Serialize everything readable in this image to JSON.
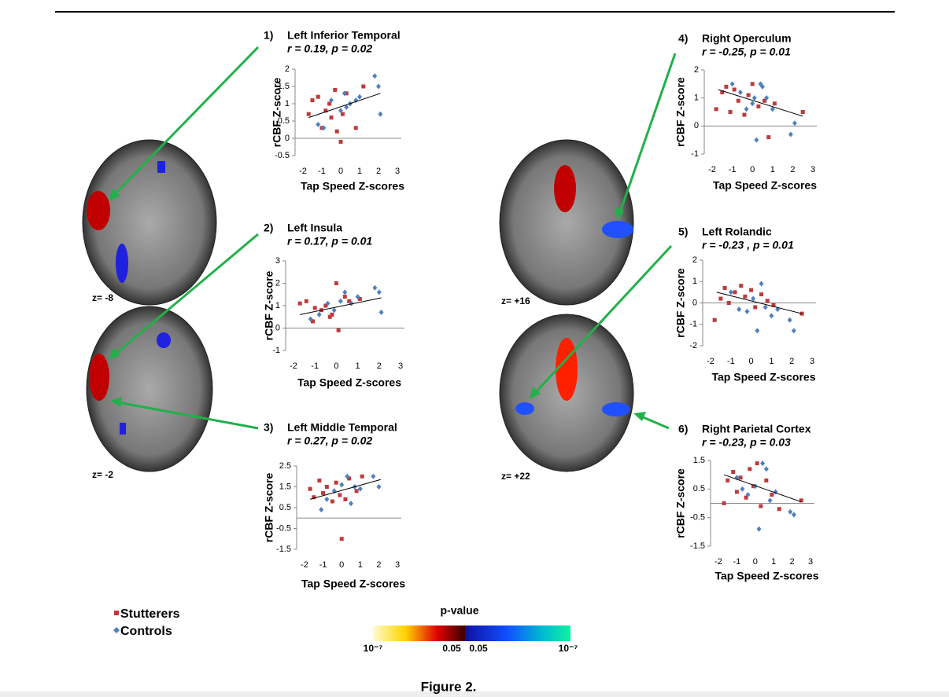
{
  "chart_data": [
    {
      "type": "scatter",
      "panel": "1)",
      "title": "Left Inferior Temporal",
      "subtitle": "r = 0.19, p = 0.02",
      "x_label": "Tap Speed Z-scores",
      "y_label": "rCBF Z-score",
      "xlim": [
        -2,
        3
      ],
      "xticks": [
        -2,
        -1,
        0,
        1,
        2,
        3
      ],
      "ylim": [
        -0.5,
        2
      ],
      "yticks": [
        -0.5,
        0,
        0.5,
        1,
        1.5,
        2
      ],
      "series": [
        {
          "name": "Stutterers",
          "color": "#c0393b",
          "marker": "square",
          "x": [
            -1.7,
            -1.5,
            -1.2,
            -1,
            -0.8,
            -0.6,
            -0.5,
            -0.3,
            -0.2,
            0,
            0.1,
            0.3,
            0.8,
            1.2
          ],
          "values": [
            0.7,
            1.1,
            1.2,
            0.3,
            0.8,
            1.0,
            0.6,
            1.4,
            0.2,
            -0.1,
            0.7,
            1.3,
            0.3,
            1.5
          ]
        },
        {
          "name": "Controls",
          "color": "#4f81bd",
          "marker": "diamond",
          "x": [
            -1.2,
            -0.9,
            -0.5,
            0,
            0.2,
            0.3,
            0.5,
            0.8,
            1,
            1.8,
            2,
            2.1
          ],
          "values": [
            0.4,
            0.3,
            1.1,
            0.8,
            1.3,
            0.9,
            1.0,
            1.1,
            1.2,
            1.8,
            1.5,
            0.7
          ]
        }
      ],
      "trend": {
        "x": [
          -1.7,
          2.1
        ],
        "y": [
          0.6,
          1.3
        ]
      }
    },
    {
      "type": "scatter",
      "panel": "2)",
      "title": "Left Insula",
      "subtitle": "r = 0.17, p = 0.01",
      "x_label": "Tap Speed Z-scores",
      "y_label": "rCBF Z-score",
      "xlim": [
        -2,
        3
      ],
      "xticks": [
        -2,
        -1,
        0,
        1,
        2,
        3
      ],
      "ylim": [
        -1,
        3
      ],
      "yticks": [
        -1,
        0,
        1,
        2,
        3
      ],
      "series": [
        {
          "name": "Stutterers",
          "color": "#c0393b",
          "marker": "square",
          "x": [
            -1.7,
            -1.4,
            -1.1,
            -1,
            -0.7,
            -0.5,
            -0.3,
            -0.2,
            0,
            0.1,
            0.4,
            0.6,
            1.1
          ],
          "values": [
            1.1,
            1.2,
            0.3,
            0.9,
            0.8,
            1.0,
            0.5,
            0.6,
            2.0,
            -0.1,
            1.4,
            1.2,
            1.3
          ]
        },
        {
          "name": "Controls",
          "color": "#4f81bd",
          "marker": "diamond",
          "x": [
            -1.2,
            -0.8,
            -0.4,
            -0.1,
            0.2,
            0.4,
            0.7,
            1,
            1.8,
            2,
            2.1
          ],
          "values": [
            0.4,
            0.6,
            1.1,
            0.8,
            1.2,
            1.6,
            1.1,
            1.4,
            1.8,
            1.6,
            0.7
          ]
        }
      ],
      "trend": {
        "x": [
          -1.7,
          2.1
        ],
        "y": [
          0.6,
          1.35
        ]
      }
    },
    {
      "type": "scatter",
      "panel": "3)",
      "title": "Left Middle Temporal",
      "subtitle": "r = 0.27, p = 0.02",
      "x_label": "Tap Speed Z-scores",
      "y_label": "rCBF Z-score",
      "xlim": [
        -2,
        3
      ],
      "xticks": [
        -2,
        -1,
        0,
        1,
        2,
        3
      ],
      "ylim": [
        -1.5,
        2.5
      ],
      "yticks": [
        -1.5,
        -0.5,
        0.5,
        1.5,
        2.5
      ],
      "series": [
        {
          "name": "Stutterers",
          "color": "#c0393b",
          "marker": "square",
          "x": [
            -1.7,
            -1.5,
            -1.2,
            -1,
            -0.8,
            -0.5,
            -0.3,
            -0.1,
            0,
            0.2,
            0.4,
            0.8,
            1.1
          ],
          "values": [
            1.4,
            1.0,
            1.8,
            1.2,
            1.5,
            0.8,
            1.7,
            1.1,
            -1.0,
            0.9,
            1.9,
            1.3,
            2.0
          ]
        },
        {
          "name": "Controls",
          "color": "#4f81bd",
          "marker": "diamond",
          "x": [
            -1.1,
            -0.8,
            -0.4,
            0,
            0.3,
            0.5,
            0.7,
            1,
            1.7,
            2
          ],
          "values": [
            0.4,
            0.9,
            1.3,
            1.6,
            2.0,
            0.7,
            1.5,
            1.4,
            2.0,
            1.5
          ]
        }
      ],
      "trend": {
        "x": [
          -1.7,
          2.1
        ],
        "y": [
          0.9,
          1.85
        ]
      }
    },
    {
      "type": "scatter",
      "panel": "4)",
      "title": "Right Operculum",
      "subtitle": "r = -0.25, p = 0.01",
      "x_label": "Tap Speed Z-scores",
      "y_label": "rCBF Z-score",
      "xlim": [
        -2,
        3
      ],
      "xticks": [
        -2,
        -1,
        0,
        1,
        2,
        3
      ],
      "ylim": [
        -1,
        2
      ],
      "yticks": [
        -1,
        0,
        1,
        2
      ],
      "series": [
        {
          "name": "Stutterers",
          "color": "#c0393b",
          "marker": "square",
          "x": [
            -1.8,
            -1.5,
            -1.3,
            -1.1,
            -0.9,
            -0.7,
            -0.4,
            -0.2,
            0,
            0.3,
            0.6,
            0.8,
            1.1,
            2.5
          ],
          "values": [
            0.6,
            1.2,
            1.4,
            0.5,
            1.3,
            0.9,
            0.4,
            1.1,
            1.5,
            0.7,
            0.9,
            -0.4,
            0.8,
            0.5
          ]
        },
        {
          "name": "Controls",
          "color": "#4f81bd",
          "marker": "diamond",
          "x": [
            -1,
            -0.6,
            -0.3,
            0,
            0.2,
            0.4,
            0.5,
            0.7,
            1,
            1.9,
            2.1,
            0.1
          ],
          "values": [
            1.5,
            1.2,
            0.6,
            0.8,
            -0.5,
            1.5,
            1.4,
            1.0,
            0.6,
            -0.3,
            0.1,
            1.0
          ]
        }
      ],
      "trend": {
        "x": [
          -1.7,
          2.5
        ],
        "y": [
          1.3,
          0.35
        ]
      }
    },
    {
      "type": "scatter",
      "panel": "5)",
      "title": "Left Rolandic",
      "subtitle": "r = -0.23 , p = 0.01",
      "x_label": "Tap Speed Z-scores",
      "y_label": "rCBF Z-score",
      "xlim": [
        -2,
        3
      ],
      "xticks": [
        -2,
        -1,
        0,
        1,
        2,
        3
      ],
      "ylim": [
        -2,
        2
      ],
      "yticks": [
        -2,
        -1,
        0,
        1,
        2
      ],
      "series": [
        {
          "name": "Stutterers",
          "color": "#c0393b",
          "marker": "square",
          "x": [
            -1.8,
            -1.5,
            -1.3,
            -1.1,
            -0.8,
            -0.5,
            -0.3,
            0,
            0.2,
            0.5,
            0.8,
            1.1,
            2.5
          ],
          "values": [
            -0.8,
            0.2,
            0.7,
            0,
            0.5,
            0.8,
            0.3,
            0.6,
            -0.2,
            0.4,
            0.1,
            -0.1,
            -0.5
          ]
        },
        {
          "name": "Controls",
          "color": "#4f81bd",
          "marker": "diamond",
          "x": [
            -1,
            -0.6,
            -0.2,
            0.1,
            0.3,
            0.5,
            0.7,
            1,
            1.9,
            2.1,
            1.3
          ],
          "values": [
            0.5,
            -0.3,
            -0.4,
            0.2,
            -1.3,
            0.9,
            -0.2,
            -0.6,
            -0.8,
            -1.3,
            -0.3
          ]
        }
      ],
      "trend": {
        "x": [
          -1.7,
          2.5
        ],
        "y": [
          0.5,
          -0.5
        ]
      }
    },
    {
      "type": "scatter",
      "panel": "6)",
      "title": "Right Parietal Cortex",
      "subtitle": "r = -0.23, p = 0.03",
      "x_label": "Tap Speed Z-scores",
      "y_label": "rCBF Z-score",
      "xlim": [
        -2,
        3
      ],
      "xticks": [
        -2,
        -1,
        0,
        1,
        2,
        3
      ],
      "ylim": [
        -1.5,
        1.5
      ],
      "yticks": [
        -1.5,
        -0.5,
        0.5,
        1.5
      ],
      "series": [
        {
          "name": "Stutterers",
          "color": "#c0393b",
          "marker": "square",
          "x": [
            -1.7,
            -1.5,
            -1.2,
            -1,
            -0.8,
            -0.5,
            -0.3,
            -0.1,
            0.1,
            0.3,
            0.6,
            0.9,
            1.3,
            2.5
          ],
          "values": [
            0,
            0.8,
            1.1,
            0.4,
            0.9,
            0.2,
            1.2,
            0.6,
            1.4,
            -0.1,
            0.8,
            0.3,
            -0.2,
            0.1
          ]
        },
        {
          "name": "Controls",
          "color": "#4f81bd",
          "marker": "diamond",
          "x": [
            -1,
            -0.7,
            -0.4,
            0,
            0.2,
            0.4,
            0.6,
            0.8,
            1.1,
            1.9,
            2.1
          ],
          "values": [
            0.9,
            0.5,
            0.3,
            0.6,
            -0.9,
            1.4,
            1.2,
            0.1,
            0.4,
            -0.3,
            -0.4
          ]
        }
      ],
      "trend": {
        "x": [
          -1.7,
          2.5
        ],
        "y": [
          1.0,
          0.05
        ]
      }
    }
  ],
  "slices": [
    "z= -8",
    "z= -2",
    "z= +16",
    "z= +22"
  ],
  "colorbar": {
    "title": "p-value",
    "labels": [
      "10⁻⁷",
      "0.05",
      "0.05",
      "10⁻⁷"
    ]
  },
  "caption": "Figure 2."
}
